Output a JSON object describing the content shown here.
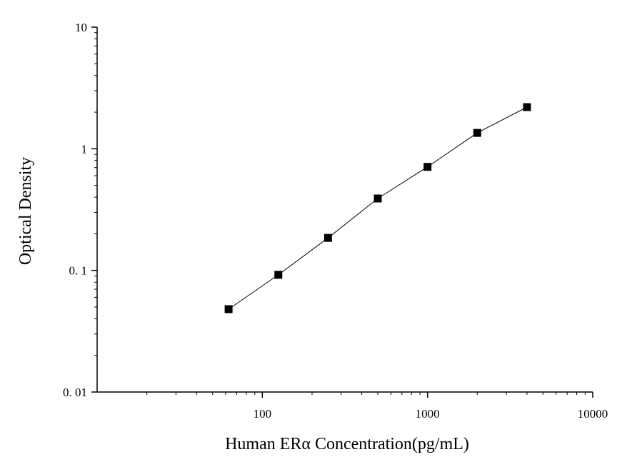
{
  "chart_data": {
    "type": "line",
    "x_scale": "log",
    "y_scale": "log",
    "xlabel": "Human ERα Concentration(pg/mL)",
    "ylabel": "Optical Density",
    "xlim": [
      10,
      10000
    ],
    "ylim": [
      0.01,
      10
    ],
    "x_ticks": [
      {
        "value": 100,
        "label": "100"
      },
      {
        "value": 1000,
        "label": "1000"
      },
      {
        "value": 10000,
        "label": "10000"
      }
    ],
    "y_ticks": [
      {
        "value": 0.01,
        "label": "0. 01"
      },
      {
        "value": 0.1,
        "label": "0. 1"
      },
      {
        "value": 1,
        "label": "1"
      },
      {
        "value": 10,
        "label": "10"
      }
    ],
    "grid": false,
    "marker": "square",
    "series": [
      {
        "x": [
          62.5,
          125,
          250,
          500,
          1000,
          2000,
          4000
        ],
        "y": [
          0.048,
          0.092,
          0.185,
          0.39,
          0.71,
          1.35,
          2.2
        ]
      }
    ],
    "colors": {
      "line": "#000000",
      "marker": "#000000",
      "axis": "#000000"
    }
  }
}
